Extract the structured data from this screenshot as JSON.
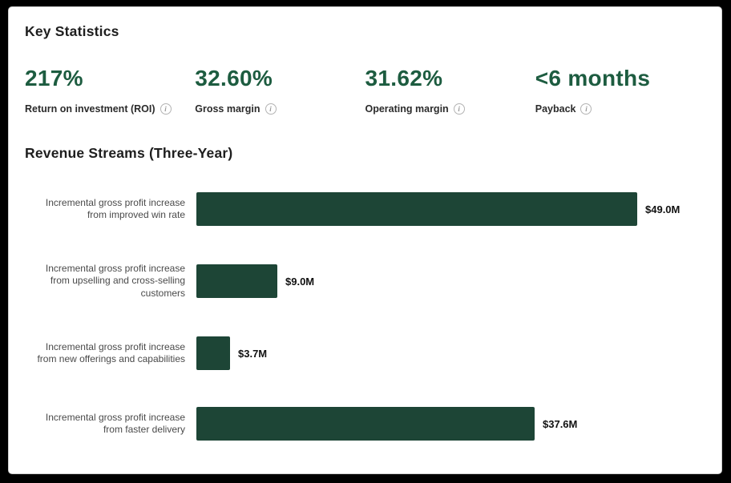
{
  "key_statistics": {
    "title": "Key Statistics",
    "stats": [
      {
        "value": "217%",
        "label": "Return on investment (ROI)"
      },
      {
        "value": "32.60%",
        "label": "Gross margin"
      },
      {
        "value": "31.62%",
        "label": "Operating margin"
      },
      {
        "value": "<6 months",
        "label": "Payback"
      }
    ],
    "info_icon_glyph": "i"
  },
  "revenue_streams": {
    "title": "Revenue Streams (Three-Year)"
  },
  "chart_data": {
    "type": "bar",
    "orientation": "horizontal",
    "title": "Revenue Streams (Three-Year)",
    "categories": [
      "Incremental gross profit increase from improved win rate",
      "Incremental gross profit increase from upselling and cross-selling customers",
      "Incremental gross profit increase from new offerings and capabilities",
      "Incremental gross profit increase from faster delivery"
    ],
    "values": [
      49.0,
      9.0,
      3.7,
      37.6
    ],
    "value_labels": [
      "$49.0M",
      "$9.0M",
      "$3.7M",
      "$37.6M"
    ],
    "unit": "USD millions",
    "xlim": [
      0,
      49.0
    ],
    "grid": false,
    "legend": false,
    "bar_color": "#1d4536"
  },
  "colors": {
    "frame": "#000000",
    "card": "#ffffff",
    "stat_green": "#1d5c40",
    "bar_green": "#1d4536",
    "heading": "#1e1e1e",
    "stat_label": "#2b2b2b",
    "bar_label": "#4a4a4a",
    "info_gray": "#999999"
  }
}
